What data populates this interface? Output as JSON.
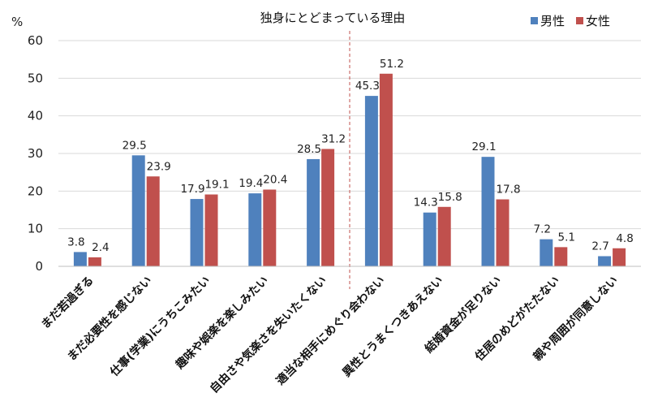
{
  "chart_data": {
    "type": "bar",
    "title": "独身にとどまっている理由",
    "ylabel": "%",
    "ylim": [
      0,
      60
    ],
    "yticks": [
      0,
      10,
      20,
      30,
      40,
      50,
      60
    ],
    "grid": true,
    "legend_position": "top-right",
    "categories": [
      "まだ若過ぎる",
      "まだ必要性を感じない",
      "仕事(学業)にうちこみたい",
      "趣味や娯楽を楽しみたい",
      "自由さや気楽さを失いたくない",
      "適当な相手にめぐり会わない",
      "異性とうまくつきあえない",
      "結婚資金が足りない",
      "住居のめどがたたない",
      "親や周囲が同意しない"
    ],
    "series": [
      {
        "name": "男性",
        "color": "#4f81bd",
        "values": [
          3.8,
          29.5,
          17.9,
          19.4,
          28.5,
          45.3,
          14.3,
          29.1,
          7.2,
          2.7
        ]
      },
      {
        "name": "女性",
        "color": "#c0504d",
        "values": [
          2.4,
          23.9,
          19.1,
          20.4,
          31.2,
          51.2,
          15.8,
          17.8,
          5.1,
          4.8
        ]
      }
    ],
    "divider_after_index": 4,
    "divider_color": "#c0504d"
  }
}
